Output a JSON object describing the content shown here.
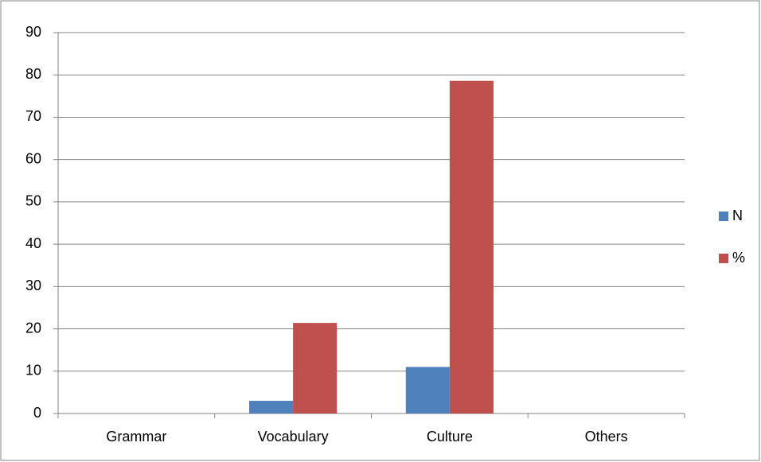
{
  "chart_data": {
    "type": "bar",
    "categories": [
      "Grammar",
      "Vocabulary",
      "Culture",
      "Others"
    ],
    "series": [
      {
        "name": "N",
        "color": "#4f81bd",
        "values": [
          0,
          3,
          11,
          0
        ]
      },
      {
        "name": "%",
        "color": "#c0504d",
        "values": [
          0,
          21.4,
          78.6,
          0
        ]
      }
    ],
    "ylim": [
      0,
      90
    ],
    "yticks": [
      0,
      10,
      20,
      30,
      40,
      50,
      60,
      70,
      80,
      90
    ],
    "grid": true,
    "legend": "right"
  }
}
